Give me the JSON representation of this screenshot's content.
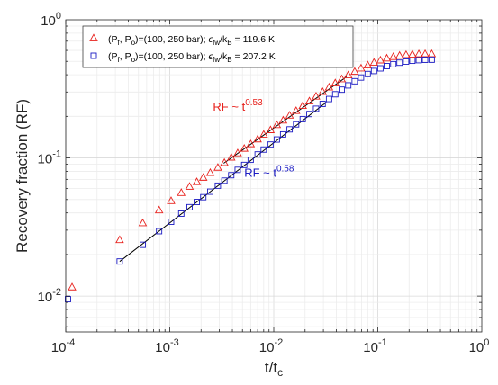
{
  "chart_data": {
    "type": "scatter",
    "xscale": "log",
    "yscale": "log",
    "xlim": [
      0.0001,
      1
    ],
    "ylim": [
      0.0055,
      1
    ],
    "grid": true,
    "legend_position": "top-left",
    "xlabel_main": "t/t",
    "xlabel_sub": "c",
    "ylabel": "Recovery fraction (RF)",
    "x_ticks": [
      {
        "value": 0.0001,
        "base": "10",
        "exp": "-4"
      },
      {
        "value": 0.001,
        "base": "10",
        "exp": "-3"
      },
      {
        "value": 0.01,
        "base": "10",
        "exp": "-2"
      },
      {
        "value": 0.1,
        "base": "10",
        "exp": "-1"
      },
      {
        "value": 1,
        "base": "10",
        "exp": "0"
      }
    ],
    "y_ticks": [
      {
        "value": 0.01,
        "base": "10",
        "exp": "-2"
      },
      {
        "value": 0.1,
        "base": "10",
        "exp": "-1"
      },
      {
        "value": 1,
        "base": "10",
        "exp": "0"
      }
    ],
    "series": [
      {
        "name": "(P_f, P_o)=(100, 250 bar); ε_fw/k_B = 119.6 K",
        "legend_parts": [
          "(P",
          "f",
          ", P",
          "o",
          ")=(100, 250 bar); ",
          "ϵ",
          "fw",
          "/k",
          "B",
          " = 119.6 K"
        ],
        "marker": "triangle",
        "color": "#e8211c",
        "x": [
          0.000115,
          0.00033,
          0.00055,
          0.00079,
          0.00103,
          0.00129,
          0.00155,
          0.00182,
          0.0021,
          0.00245,
          0.0029,
          0.00335,
          0.0039,
          0.0045,
          0.0052,
          0.006,
          0.007,
          0.008,
          0.0093,
          0.0107,
          0.0123,
          0.0142,
          0.0164,
          0.019,
          0.022,
          0.0255,
          0.0295,
          0.034,
          0.039,
          0.045,
          0.052,
          0.06,
          0.069,
          0.08,
          0.092,
          0.106,
          0.122,
          0.141,
          0.162,
          0.187,
          0.215,
          0.248,
          0.285,
          0.33
        ],
        "y": [
          0.0115,
          0.0253,
          0.0335,
          0.0415,
          0.0485,
          0.0555,
          0.0615,
          0.0665,
          0.0715,
          0.0775,
          0.0845,
          0.0915,
          0.1,
          0.1075,
          0.116,
          0.125,
          0.1355,
          0.1465,
          0.158,
          0.172,
          0.1855,
          0.2015,
          0.2175,
          0.2365,
          0.2555,
          0.2765,
          0.2985,
          0.322,
          0.345,
          0.369,
          0.394,
          0.418,
          0.442,
          0.465,
          0.486,
          0.505,
          0.522,
          0.535,
          0.546,
          0.553,
          0.557,
          0.56,
          0.561,
          0.561
        ]
      },
      {
        "name": "(P_f, P_o)=(100, 250 bar); ε_fw/k_B = 207.2 K",
        "legend_parts": [
          "(P",
          "f",
          ", P",
          "o",
          ")=(100, 250 bar); ",
          "ϵ",
          "fw",
          "/k",
          "B",
          " = 207.2 K"
        ],
        "marker": "square",
        "color": "#1a1ac2",
        "x": [
          0.000105,
          0.00033,
          0.00055,
          0.00079,
          0.00103,
          0.00129,
          0.00155,
          0.00182,
          0.0021,
          0.00245,
          0.0029,
          0.00335,
          0.0039,
          0.0045,
          0.0052,
          0.006,
          0.007,
          0.008,
          0.0093,
          0.0107,
          0.0123,
          0.0142,
          0.0164,
          0.019,
          0.022,
          0.0255,
          0.0295,
          0.034,
          0.039,
          0.045,
          0.052,
          0.06,
          0.069,
          0.08,
          0.092,
          0.106,
          0.122,
          0.141,
          0.162,
          0.187,
          0.215,
          0.248,
          0.285,
          0.33
        ],
        "y": [
          0.0095,
          0.0178,
          0.0235,
          0.0295,
          0.0345,
          0.0395,
          0.044,
          0.048,
          0.052,
          0.057,
          0.063,
          0.0685,
          0.075,
          0.082,
          0.089,
          0.097,
          0.106,
          0.115,
          0.125,
          0.136,
          0.148,
          0.161,
          0.175,
          0.191,
          0.208,
          0.227,
          0.246,
          0.267,
          0.289,
          0.312,
          0.335,
          0.359,
          0.382,
          0.405,
          0.426,
          0.445,
          0.462,
          0.477,
          0.489,
          0.498,
          0.505,
          0.51,
          0.513,
          0.514
        ]
      }
    ],
    "fits": [
      {
        "series": 0,
        "exponent": 0.53,
        "x_range": [
          0.0033,
          0.05
        ],
        "anchor": [
          0.0033,
          0.0915
        ],
        "label_base": "RF ~ t",
        "label_exp": "0.53",
        "label_at": [
          0.0026,
          0.22
        ],
        "color": "#e8211c"
      },
      {
        "series": 1,
        "exponent": 0.58,
        "x_range": [
          0.00033,
          0.032
        ],
        "anchor": [
          0.00033,
          0.0178
        ],
        "label_base": "RF ~ t",
        "label_exp": "0.58",
        "label_at": [
          0.0052,
          0.073
        ],
        "color": "#1a1ac2"
      }
    ]
  }
}
